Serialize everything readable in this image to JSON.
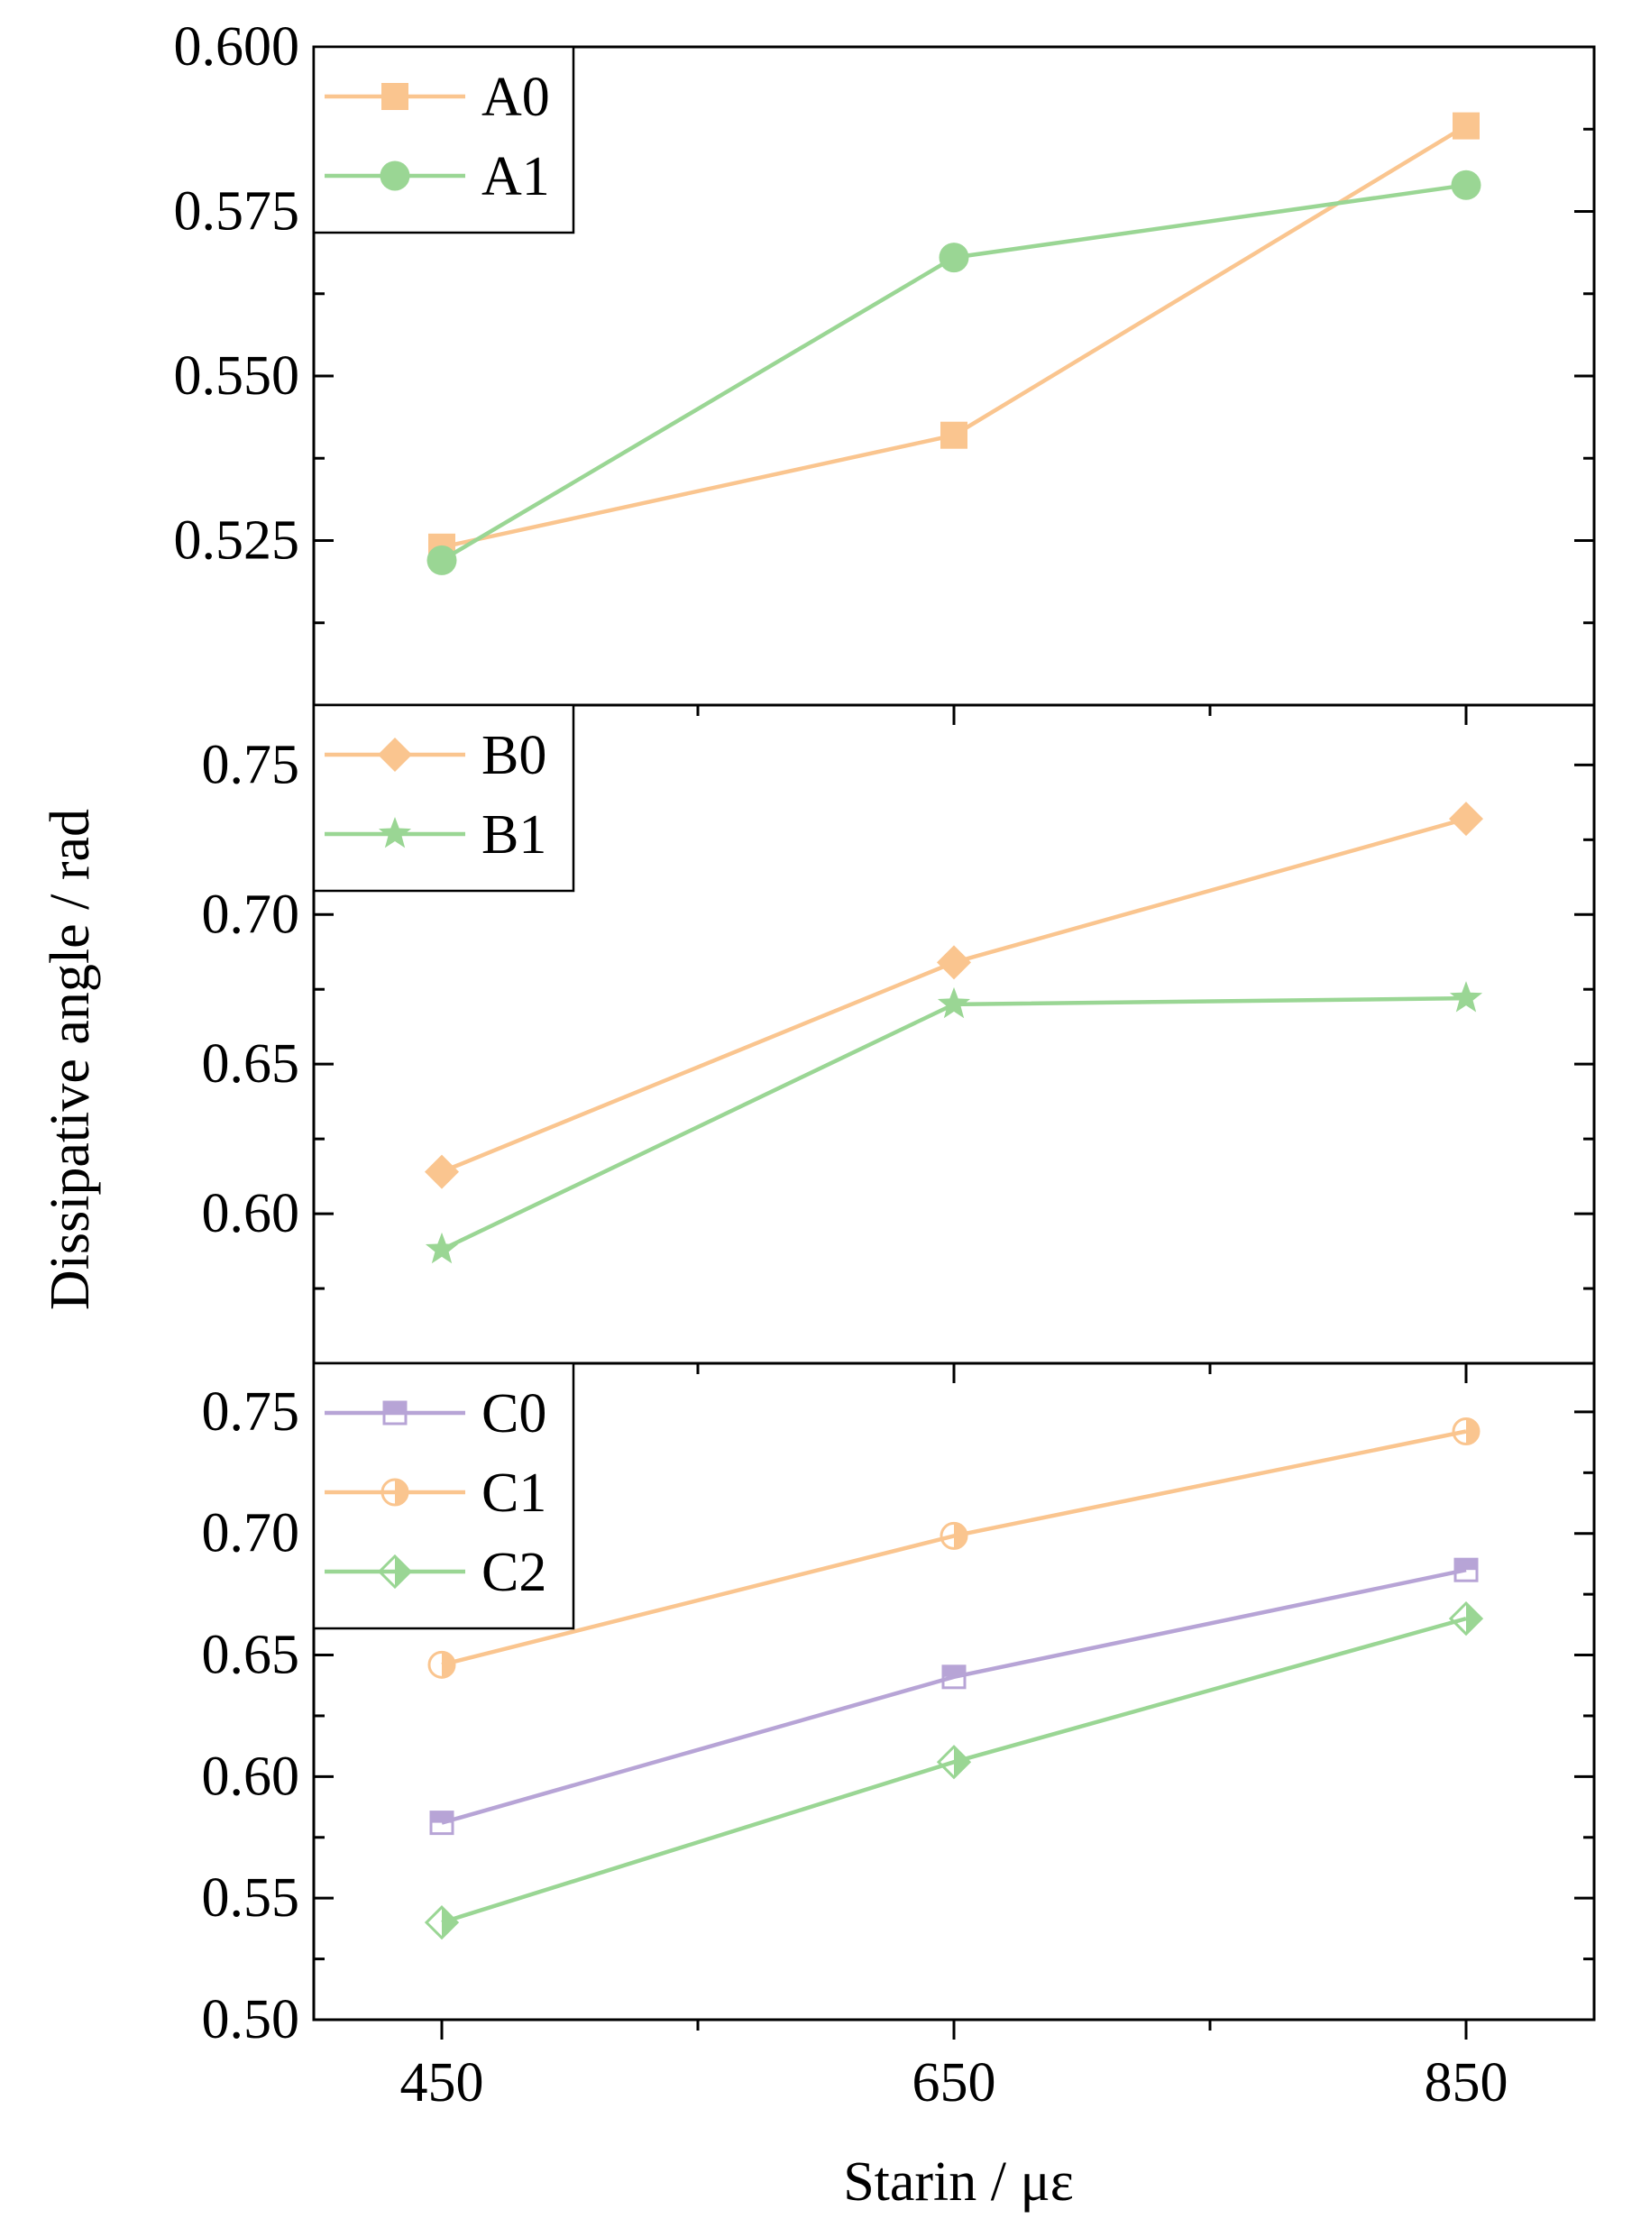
{
  "chart_data": {
    "type": "line",
    "xlabel": "Starin / με",
    "ylabel": "Dissipative angle / rad",
    "x_categories": [
      450,
      650,
      850
    ],
    "xlim": [
      400,
      900
    ],
    "colors": {
      "orange": "#FAC58F",
      "green": "#9AD694",
      "purple": "#B7A4D6",
      "axis": "#000000"
    },
    "panels": [
      {
        "id": "A",
        "ylim": [
          0.5,
          0.6
        ],
        "yticks": [
          0.525,
          0.55,
          0.575,
          0.6
        ],
        "ytick_labels": [
          "0.525",
          "0.550",
          "0.575",
          "0.600"
        ],
        "series": [
          {
            "name": "A0",
            "color": "orange",
            "marker": "square",
            "values": [
              0.524,
              0.541,
              0.588
            ]
          },
          {
            "name": "A1",
            "color": "green",
            "marker": "circle",
            "values": [
              0.522,
              0.568,
              0.579
            ]
          }
        ]
      },
      {
        "id": "B",
        "ylim": [
          0.55,
          0.77
        ],
        "yticks": [
          0.6,
          0.65,
          0.7,
          0.75
        ],
        "ytick_labels": [
          "0.60",
          "0.65",
          "0.70",
          "0.75"
        ],
        "series": [
          {
            "name": "B0",
            "color": "orange",
            "marker": "diamond",
            "values": [
              0.614,
              0.684,
              0.732
            ]
          },
          {
            "name": "B1",
            "color": "green",
            "marker": "star",
            "values": [
              0.588,
              0.67,
              0.672
            ]
          }
        ]
      },
      {
        "id": "C",
        "ylim": [
          0.5,
          0.77
        ],
        "yticks": [
          0.5,
          0.55,
          0.6,
          0.65,
          0.7,
          0.75
        ],
        "ytick_labels": [
          "0.50",
          "0.55",
          "0.60",
          "0.65",
          "0.70",
          "0.75"
        ],
        "series": [
          {
            "name": "C0",
            "color": "purple",
            "marker": "half-square",
            "values": [
              0.581,
              0.641,
              0.685
            ]
          },
          {
            "name": "C1",
            "color": "orange",
            "marker": "half-circle",
            "values": [
              0.646,
              0.699,
              0.742
            ]
          },
          {
            "name": "C2",
            "color": "green",
            "marker": "half-diamond",
            "values": [
              0.54,
              0.606,
              0.665
            ]
          }
        ]
      }
    ],
    "legend_position": "top-left"
  }
}
